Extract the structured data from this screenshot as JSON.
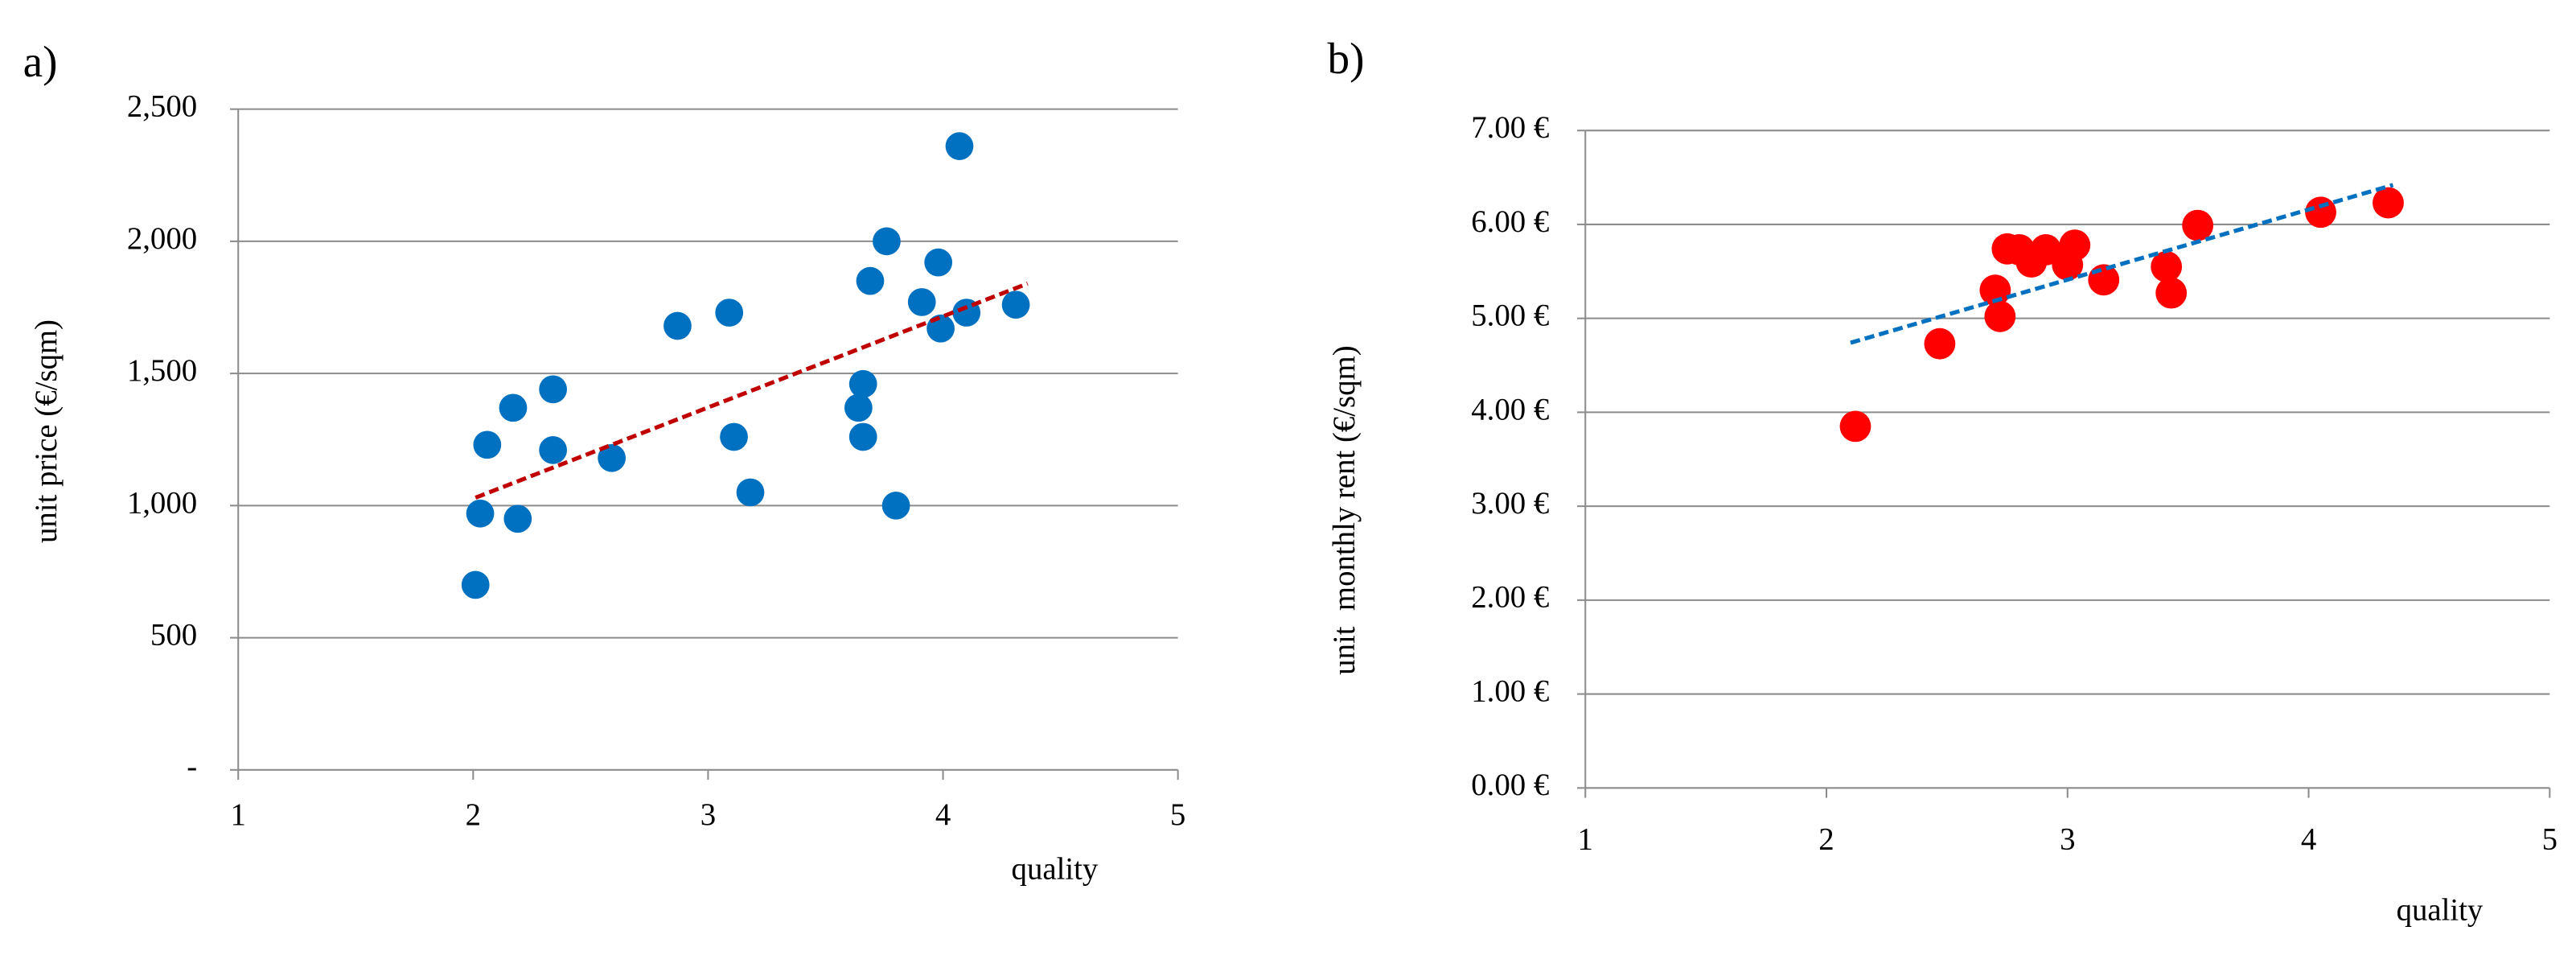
{
  "chart_data": [
    {
      "type": "scatter",
      "panel_label": "a)",
      "x_label": "quality",
      "y_label": "unit price (€/sqm)",
      "xlim": [
        1,
        5
      ],
      "xticks": [
        1,
        2,
        3,
        4,
        5
      ],
      "ylim": [
        0,
        2500
      ],
      "yticks": [
        {
          "value": 0,
          "label": "-"
        },
        500,
        {
          "value": 1000,
          "label": "1,000"
        },
        {
          "value": 1500,
          "label": "1,500"
        },
        {
          "value": 2000,
          "label": "2,000"
        },
        {
          "value": 2500,
          "label": "2,500"
        }
      ],
      "grid": true,
      "color": "#0070c0",
      "x": [
        2.01,
        2.03,
        2.06,
        2.17,
        2.19,
        2.34,
        2.34,
        2.59,
        2.87,
        3.09,
        3.11,
        3.18,
        3.64,
        3.66,
        3.66,
        3.69,
        3.76,
        3.8,
        3.91,
        3.98,
        3.99,
        4.07,
        4.1,
        4.31
      ],
      "values": [
        700,
        970,
        1230,
        1370,
        950,
        1440,
        1210,
        1180,
        1680,
        1730,
        1260,
        1050,
        1370,
        1460,
        1260,
        1850,
        2000,
        1000,
        1770,
        1920,
        1670,
        2360,
        1730,
        1760
      ],
      "trendline": {
        "x": [
          2.01,
          4.36
        ],
        "values": [
          1030,
          1840
        ],
        "color": "#c00000"
      }
    },
    {
      "type": "scatter",
      "panel_label": "b)",
      "x_label": "quality",
      "y_label": "unit  monthly rent (€/sqm)",
      "xlim": [
        1,
        5
      ],
      "xticks": [
        1,
        2,
        3,
        4,
        5
      ],
      "ylim": [
        0,
        7
      ],
      "yticks": [
        {
          "value": 0,
          "label": "0.00 €"
        },
        {
          "value": 1,
          "label": "1.00 €"
        },
        {
          "value": 2,
          "label": "2.00 €"
        },
        {
          "value": 3,
          "label": "3.00 €"
        },
        {
          "value": 4,
          "label": "4.00 €"
        },
        {
          "value": 5,
          "label": "5.00 €"
        },
        {
          "value": 6,
          "label": "6.00 €"
        },
        {
          "value": 7,
          "label": "7.00 €"
        }
      ],
      "grid": true,
      "color": "#ff0000",
      "x": [
        2.12,
        2.47,
        2.7,
        2.72,
        2.75,
        2.8,
        2.85,
        2.91,
        3.0,
        3.03,
        3.15,
        3.41,
        3.43,
        3.54,
        4.05,
        4.33
      ],
      "values": [
        3.85,
        4.73,
        5.3,
        5.02,
        5.74,
        5.73,
        5.6,
        5.73,
        5.57,
        5.78,
        5.41,
        5.55,
        5.27,
        5.99,
        6.13,
        6.23
      ],
      "trendline": {
        "x": [
          2.1,
          4.35
        ],
        "values": [
          4.74,
          6.42
        ],
        "color": "#0070c0"
      }
    }
  ]
}
